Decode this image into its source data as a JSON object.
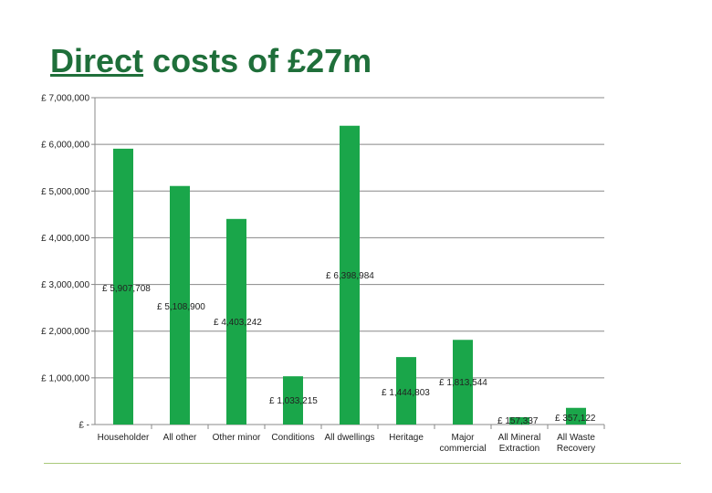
{
  "header": {
    "title_underlined": "Direct",
    "title_rest": " costs of £27m"
  },
  "colors": {
    "bar": "#1aa64a",
    "grid": "#888888",
    "title": "#1f6f3a",
    "footer_rule": "#a9c97a"
  },
  "chart_data": {
    "type": "bar",
    "title": "Direct costs of £27m",
    "xlabel": "",
    "ylabel": "",
    "ylim": [
      0,
      7000000
    ],
    "grid": true,
    "y_ticks": [
      {
        "value": 7000000,
        "label": "£ 7,000,000"
      },
      {
        "value": 6000000,
        "label": "£ 6,000,000"
      },
      {
        "value": 5000000,
        "label": "£ 5,000,000"
      },
      {
        "value": 4000000,
        "label": "£ 4,000,000"
      },
      {
        "value": 3000000,
        "label": "£ 3,000,000"
      },
      {
        "value": 2000000,
        "label": "£ 2,000,000"
      },
      {
        "value": 1000000,
        "label": "£ 1,000,000"
      },
      {
        "value": 0,
        "label": "£ -"
      }
    ],
    "categories": [
      [
        "Householder"
      ],
      [
        "All other"
      ],
      [
        "Other minor"
      ],
      [
        "Conditions"
      ],
      [
        "All dwellings"
      ],
      [
        "Heritage"
      ],
      [
        "Major",
        "commercial"
      ],
      [
        "All Mineral",
        "Extraction"
      ],
      [
        "All Waste",
        "Recovery"
      ]
    ],
    "values": [
      5907708,
      5108900,
      4403242,
      1033215,
      6398984,
      1444803,
      1813544,
      157337,
      357122
    ],
    "data_labels": [
      "£ 5,907,708",
      "£ 5,108,900",
      "£ 4,403,242",
      "£ 1,033,215",
      "£ 6,398,984",
      "£ 1,444,803",
      "£ 1,813,544",
      "£ 157,337",
      "£ 357,122"
    ]
  }
}
